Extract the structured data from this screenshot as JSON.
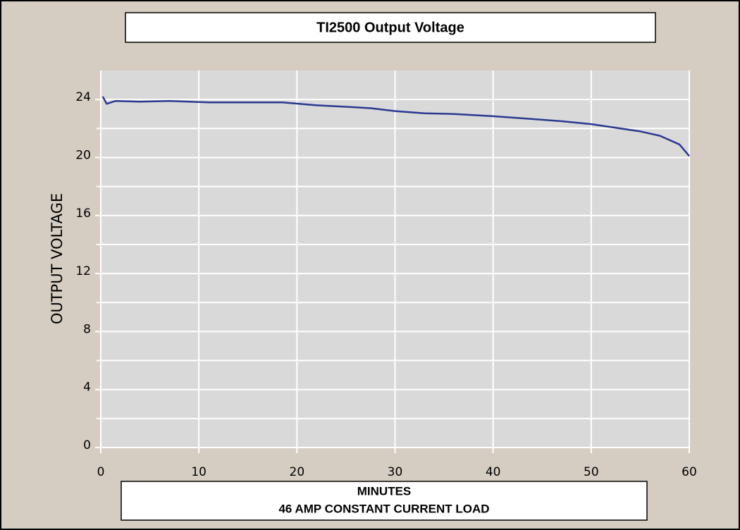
{
  "chart_data": {
    "type": "line",
    "title": "TI2500 Output Voltage",
    "ylabel": "OUTPUT VOLTAGE",
    "xlabel": [
      "MINUTES",
      "46 AMP CONSTANT CURRENT LOAD"
    ],
    "x": [
      0.2,
      0.6,
      1.5,
      4,
      7,
      11,
      18.5,
      22,
      25,
      27.5,
      30,
      33,
      36,
      40,
      44,
      47,
      50,
      52,
      55,
      57,
      59,
      59.5,
      60
    ],
    "series": [
      {
        "name": "Output Voltage",
        "color": "#2b3990",
        "values": [
          24.2,
          23.7,
          23.9,
          23.85,
          23.9,
          23.8,
          23.8,
          23.6,
          23.5,
          23.4,
          23.2,
          23.05,
          23.0,
          22.85,
          22.65,
          22.5,
          22.3,
          22.1,
          21.8,
          21.5,
          20.9,
          20.5,
          20.1
        ]
      }
    ],
    "xlim": [
      0,
      60
    ],
    "xticks": [
      0,
      10,
      20,
      30,
      40,
      50,
      60
    ],
    "ylim": [
      0,
      26
    ],
    "yticks": [
      0,
      4,
      8,
      12,
      16,
      20,
      24
    ],
    "y_minor_ticks": [
      2,
      6,
      10,
      14,
      18,
      22
    ],
    "grid": true
  }
}
